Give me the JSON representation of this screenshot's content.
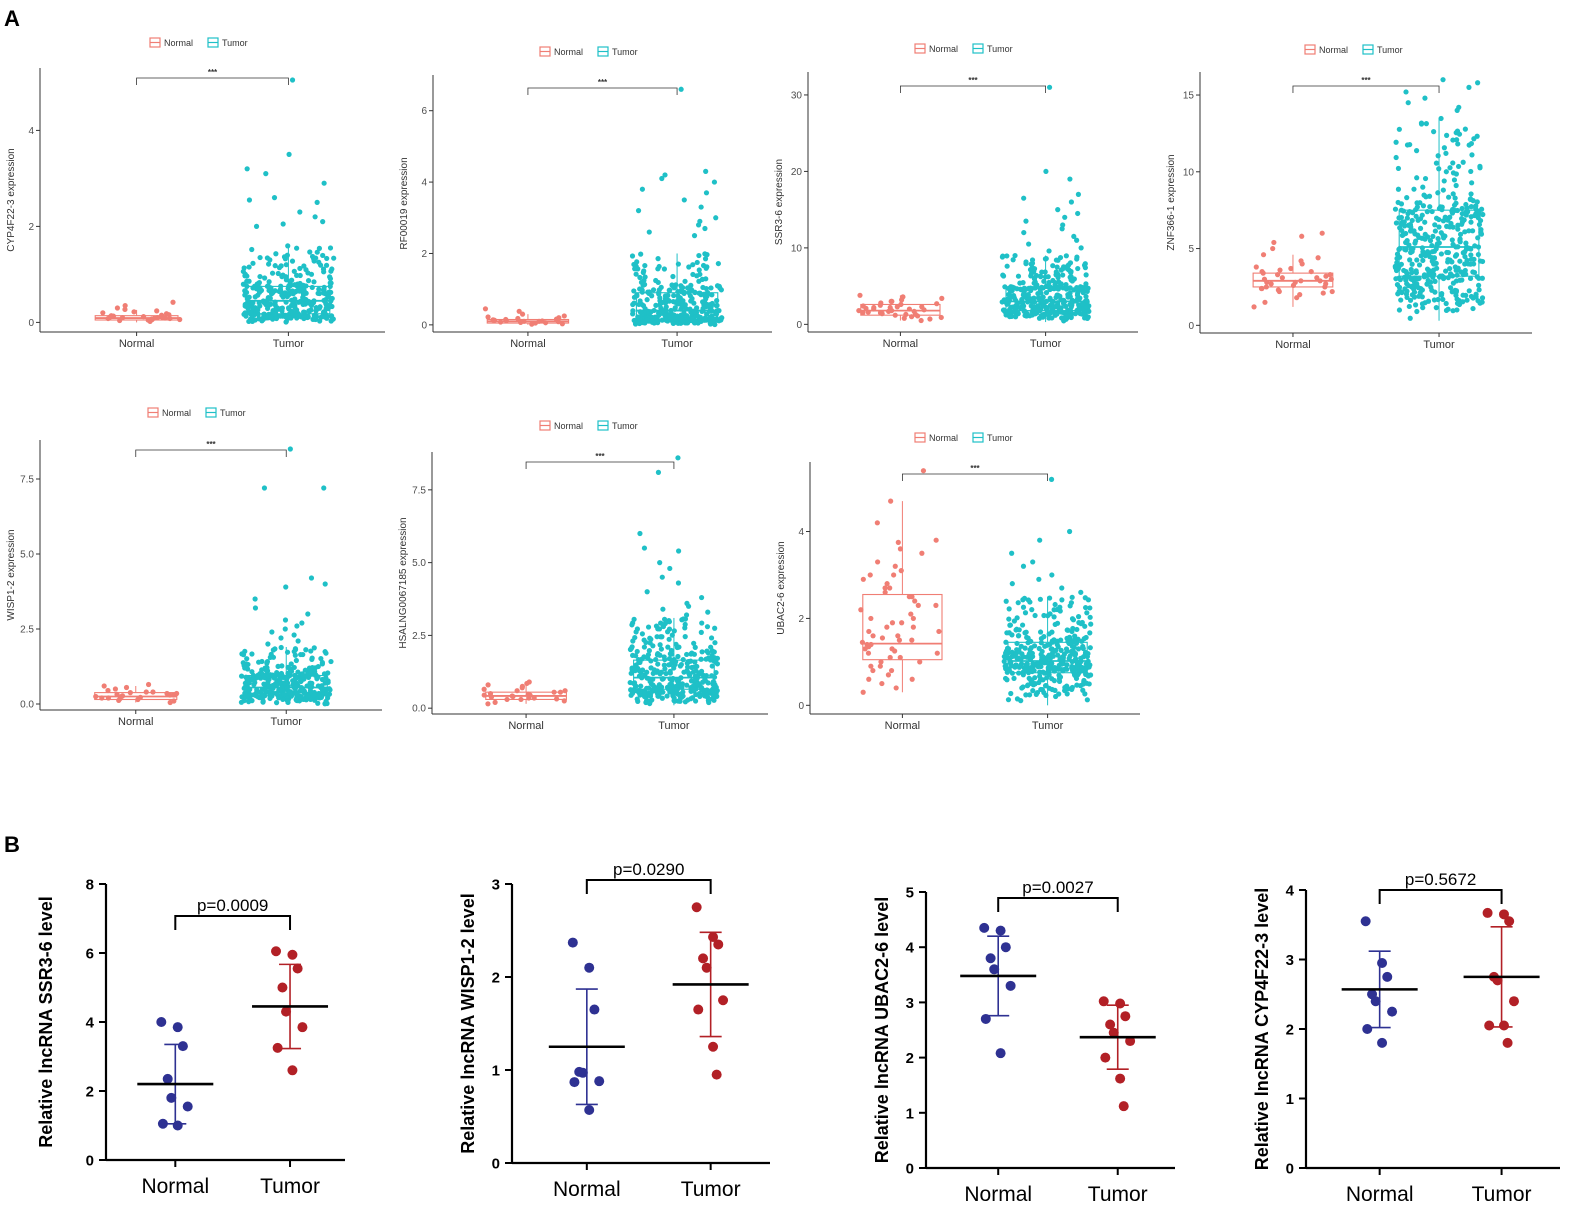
{
  "colors": {
    "normal_a": "#F07E74",
    "tumor_a": "#1FC0C7",
    "normal_b": "#2E3192",
    "tumor_b": "#B22026"
  },
  "panel_labels": {
    "a": "A",
    "b": "B"
  },
  "chart_data": [
    {
      "id": "A1",
      "type": "boxplot-scatter",
      "ylabel": "CYP4F22-3 expression",
      "categories": [
        "Normal",
        "Tumor"
      ],
      "legend": [
        "Normal",
        "Tumor"
      ],
      "significance": "***",
      "ylim": [
        -0.2,
        5.3
      ],
      "yticks": [
        0,
        2,
        4
      ],
      "normal": {
        "q1": 0.05,
        "median": 0.09,
        "q3": 0.14,
        "wlo": 0.0,
        "whi": 0.26,
        "spread": 0.15,
        "points": [
          0.02,
          0.04,
          0.05,
          0.06,
          0.06,
          0.07,
          0.08,
          0.08,
          0.09,
          0.09,
          0.1,
          0.1,
          0.11,
          0.11,
          0.12,
          0.13,
          0.14,
          0.15,
          0.16,
          0.18,
          0.2,
          0.22,
          0.24,
          0.27,
          0.3,
          0.35,
          0.42
        ]
      },
      "tumor": {
        "q1": 0.18,
        "median": 0.45,
        "q3": 0.75,
        "wlo": 0.0,
        "whi": 1.6,
        "maxpt": 5.05,
        "n": 330,
        "outliers": [
          3.5,
          3.1,
          3.2,
          2.9,
          2.6,
          2.55,
          2.5,
          2.3,
          2.2,
          2.1,
          2.05,
          2.0
        ]
      }
    },
    {
      "id": "A2",
      "type": "boxplot-scatter",
      "ylabel": "RF00019 expression",
      "categories": [
        "Normal",
        "Tumor"
      ],
      "legend": [
        "Normal",
        "Tumor"
      ],
      "significance": "***",
      "ylim": [
        -0.2,
        7.0
      ],
      "yticks": [
        0,
        2,
        4,
        6
      ],
      "normal": {
        "q1": 0.05,
        "median": 0.1,
        "q3": 0.15,
        "wlo": 0.0,
        "whi": 0.3,
        "spread": 0.15,
        "points": [
          0.02,
          0.03,
          0.05,
          0.06,
          0.07,
          0.08,
          0.09,
          0.1,
          0.1,
          0.11,
          0.12,
          0.13,
          0.14,
          0.15,
          0.16,
          0.18,
          0.2,
          0.22,
          0.25,
          0.3,
          0.38,
          0.45
        ]
      },
      "tumor": {
        "q1": 0.15,
        "median": 0.4,
        "q3": 0.9,
        "wlo": 0.0,
        "whi": 2.0,
        "maxpt": 6.6,
        "n": 330,
        "outliers": [
          4.3,
          4.2,
          4.1,
          4.0,
          3.8,
          3.7,
          3.5,
          3.3,
          3.2,
          3.0,
          2.9,
          2.8,
          2.7,
          2.6,
          2.5
        ]
      }
    },
    {
      "id": "A3",
      "type": "boxplot-scatter",
      "ylabel": "SSR3-6 expression",
      "categories": [
        "Normal",
        "Tumor"
      ],
      "legend": [
        "Normal",
        "Tumor"
      ],
      "significance": "***",
      "ylim": [
        -1,
        33
      ],
      "yticks": [
        0,
        10,
        20,
        30
      ],
      "normal": {
        "q1": 1.2,
        "median": 1.8,
        "q3": 2.6,
        "wlo": 0.5,
        "whi": 3.8,
        "spread": 0.9,
        "points": [
          0.5,
          0.7,
          0.8,
          0.9,
          1.0,
          1.1,
          1.2,
          1.3,
          1.4,
          1.5,
          1.6,
          1.7,
          1.8,
          1.9,
          2.0,
          2.1,
          2.2,
          2.3,
          2.4,
          2.6,
          2.8,
          3.0,
          3.2,
          3.4,
          3.6,
          3.8,
          1.5,
          1.7,
          2.0,
          2.2,
          2.5,
          2.7,
          3.0,
          1.3,
          1.8,
          2.3
        ]
      },
      "tumor": {
        "q1": 1.8,
        "median": 3.0,
        "q3": 4.7,
        "wlo": 0.3,
        "whi": 9.0,
        "maxpt": 31.0,
        "n": 340,
        "outliers": [
          20.0,
          19.0,
          17.0,
          16.5,
          16.0,
          15.0,
          14.5,
          14.0,
          13.5,
          13.0,
          12.5,
          12.0,
          11.5,
          11.0,
          10.5,
          10.0,
          9.6
        ]
      }
    },
    {
      "id": "A4",
      "type": "boxplot-scatter",
      "ylabel": "ZNF366-1 expression",
      "categories": [
        "Normal",
        "Tumor"
      ],
      "legend": [
        "Normal",
        "Tumor"
      ],
      "significance": "***",
      "ylim": [
        -0.5,
        16.5
      ],
      "yticks": [
        0,
        5,
        10,
        15
      ],
      "normal": {
        "q1": 2.5,
        "median": 2.9,
        "q3": 3.4,
        "wlo": 1.2,
        "whi": 4.6,
        "spread": 1.2,
        "points": [
          1.2,
          1.5,
          1.8,
          2.0,
          2.1,
          2.2,
          2.3,
          2.4,
          2.5,
          2.5,
          2.6,
          2.7,
          2.8,
          2.8,
          2.9,
          3.0,
          3.0,
          3.1,
          3.2,
          3.3,
          3.4,
          3.5,
          3.6,
          3.8,
          4.0,
          4.2,
          4.4,
          4.6,
          5.0,
          5.4,
          5.8,
          6.0,
          2.2,
          2.7,
          3.1,
          3.5,
          2.9,
          2.4,
          3.3,
          3.7
        ]
      },
      "tumor": {
        "q1": 3.2,
        "median": 5.1,
        "q3": 7.5,
        "wlo": 0.3,
        "whi": 13.5,
        "maxpt": 16.0,
        "n": 420,
        "outliers": [
          15.8,
          15.5,
          15.2,
          14.8,
          14.5,
          14.2,
          14.0
        ]
      }
    },
    {
      "id": "A5",
      "type": "boxplot-scatter",
      "ylabel": "WISP1-2 expression",
      "categories": [
        "Normal",
        "Tumor"
      ],
      "legend": [
        "Normal",
        "Tumor"
      ],
      "significance": "***",
      "ylim": [
        -0.2,
        8.8
      ],
      "yticks": [
        0.0,
        2.5,
        5.0,
        7.5
      ],
      "tickfmt": 1,
      "normal": {
        "q1": 0.15,
        "median": 0.25,
        "q3": 0.38,
        "wlo": 0.05,
        "whi": 0.6,
        "spread": 0.22,
        "points": [
          0.05,
          0.1,
          0.12,
          0.15,
          0.18,
          0.2,
          0.22,
          0.25,
          0.27,
          0.3,
          0.32,
          0.35,
          0.38,
          0.4,
          0.45,
          0.5,
          0.55,
          0.6,
          0.65,
          0.2,
          0.3,
          0.4,
          0.25,
          0.35
        ]
      },
      "tumor": {
        "q1": 0.3,
        "median": 0.55,
        "q3": 0.95,
        "wlo": 0.0,
        "whi": 1.9,
        "maxpt": 8.5,
        "n": 330,
        "outliers": [
          7.2,
          7.2,
          4.2,
          4.0,
          3.9,
          3.5,
          3.2,
          3.0,
          2.8,
          2.7,
          2.6,
          2.5,
          2.4,
          2.3,
          2.2,
          2.1,
          2.0
        ]
      }
    },
    {
      "id": "A6",
      "type": "boxplot-scatter",
      "ylabel": "HSALNG0067185 expression",
      "categories": [
        "Normal",
        "Tumor"
      ],
      "legend": [
        "Normal",
        "Tumor"
      ],
      "significance": "***",
      "ylim": [
        -0.2,
        8.8
      ],
      "yticks": [
        0.0,
        2.5,
        5.0,
        7.5
      ],
      "tickfmt": 1,
      "normal": {
        "q1": 0.3,
        "median": 0.42,
        "q3": 0.55,
        "wlo": 0.15,
        "whi": 0.8,
        "spread": 0.25,
        "points": [
          0.15,
          0.2,
          0.25,
          0.3,
          0.32,
          0.35,
          0.38,
          0.4,
          0.42,
          0.45,
          0.48,
          0.5,
          0.55,
          0.6,
          0.65,
          0.7,
          0.75,
          0.8,
          0.85,
          0.9,
          0.35,
          0.45,
          0.55,
          0.3,
          0.6
        ]
      },
      "tumor": {
        "q1": 0.65,
        "median": 1.05,
        "q3": 1.65,
        "wlo": 0.1,
        "whi": 3.1,
        "maxpt": 8.6,
        "n": 340,
        "outliers": [
          8.1,
          6.0,
          5.5,
          5.4,
          5.0,
          4.8,
          4.5,
          4.3,
          4.0,
          3.8,
          3.6,
          3.5,
          3.4,
          3.3,
          3.2
        ]
      }
    },
    {
      "id": "A7",
      "type": "boxplot-scatter",
      "ylabel": "UBAC2-6 expression",
      "categories": [
        "Normal",
        "Tumor"
      ],
      "legend": [
        "Normal",
        "Tumor"
      ],
      "significance": "***",
      "ylim": [
        -0.2,
        5.6
      ],
      "yticks": [
        0,
        2,
        4
      ],
      "normal": {
        "q1": 1.05,
        "median": 1.42,
        "q3": 2.55,
        "wlo": 0.3,
        "whi": 4.7,
        "spread": 0.9,
        "points": [
          5.4,
          4.7,
          4.2,
          3.8,
          3.75,
          3.6,
          3.5,
          3.3,
          3.1,
          3.0,
          2.9,
          2.8,
          2.7,
          2.6,
          2.5,
          2.4,
          2.3,
          2.2,
          2.1,
          2.0,
          1.9,
          1.8,
          1.7,
          1.6,
          1.55,
          1.5,
          1.45,
          1.4,
          1.35,
          1.3,
          1.25,
          1.2,
          1.1,
          1.0,
          0.9,
          0.8,
          0.7,
          0.6,
          0.5,
          0.4,
          0.3,
          1.4,
          1.6,
          1.9,
          2.3,
          2.7,
          3.2,
          1.1,
          0.8,
          1.3,
          1.7,
          2.0,
          0.6,
          1.0,
          1.5,
          2.5,
          3.0,
          1.2,
          0.9,
          1.8
        ]
      },
      "tumor": {
        "q1": 0.75,
        "median": 1.02,
        "q3": 1.45,
        "wlo": 0.0,
        "whi": 2.5,
        "maxpt": 5.2,
        "n": 380,
        "outliers": [
          4.0,
          3.8,
          3.5,
          3.3,
          3.2,
          3.0,
          2.9,
          2.8,
          2.7,
          2.6
        ]
      }
    },
    {
      "id": "B1",
      "type": "scatter-meansd",
      "ylabel": "Relative lncRNA SSR3-6 level",
      "categories": [
        "Normal",
        "Tumor"
      ],
      "p_text": "p=0.0009",
      "ylim": [
        0,
        8
      ],
      "yticks": [
        0,
        2,
        4,
        6,
        8
      ],
      "normal": {
        "mean": 2.2,
        "sd": 1.15,
        "points": [
          4.0,
          3.85,
          3.3,
          2.35,
          1.8,
          1.55,
          1.05,
          1.0
        ]
      },
      "tumor": {
        "mean": 4.45,
        "sd": 1.22,
        "points": [
          6.05,
          5.95,
          5.55,
          5.0,
          4.3,
          3.85,
          3.25,
          2.6
        ]
      }
    },
    {
      "id": "B2",
      "type": "scatter-meansd",
      "ylabel": "Relative lncRNA WISP1-2 level",
      "categories": [
        "Normal",
        "Tumor"
      ],
      "p_text": "p=0.0290",
      "ylim": [
        0,
        3
      ],
      "yticks": [
        0,
        1,
        2,
        3
      ],
      "normal": {
        "mean": 1.25,
        "sd": 0.62,
        "points": [
          2.37,
          2.1,
          1.65,
          0.98,
          0.97,
          0.88,
          0.87,
          0.57
        ]
      },
      "tumor": {
        "mean": 1.92,
        "sd": 0.56,
        "points": [
          2.75,
          2.43,
          2.35,
          2.2,
          2.1,
          1.75,
          1.65,
          1.25,
          0.95
        ]
      }
    },
    {
      "id": "B3",
      "type": "scatter-meansd",
      "ylabel": "Relative lncRNA UBAC2-6 level",
      "categories": [
        "Normal",
        "Tumor"
      ],
      "p_text": "p=0.0027",
      "ylim": [
        0,
        5
      ],
      "yticks": [
        0,
        1,
        2,
        3,
        4,
        5
      ],
      "normal": {
        "mean": 3.48,
        "sd": 0.72,
        "points": [
          4.35,
          4.3,
          4.0,
          3.8,
          3.6,
          3.3,
          2.7,
          2.08
        ]
      },
      "tumor": {
        "mean": 2.37,
        "sd": 0.58,
        "points": [
          3.02,
          2.98,
          2.75,
          2.6,
          2.45,
          2.3,
          2.0,
          1.62,
          1.12
        ]
      }
    },
    {
      "id": "B4",
      "type": "scatter-meansd",
      "ylabel": "Relative lncRNA CYP4F22-3 level",
      "categories": [
        "Normal",
        "Tumor"
      ],
      "p_text": "p=0.5672",
      "ylim": [
        0,
        4
      ],
      "yticks": [
        0,
        1,
        2,
        3,
        4
      ],
      "normal": {
        "mean": 2.57,
        "sd": 0.55,
        "points": [
          3.55,
          2.95,
          2.75,
          2.5,
          2.4,
          2.25,
          2.0,
          1.8
        ]
      },
      "tumor": {
        "mean": 2.75,
        "sd": 0.72,
        "points": [
          3.67,
          3.65,
          3.55,
          2.75,
          2.7,
          2.4,
          2.05,
          2.05,
          1.8
        ]
      }
    }
  ]
}
